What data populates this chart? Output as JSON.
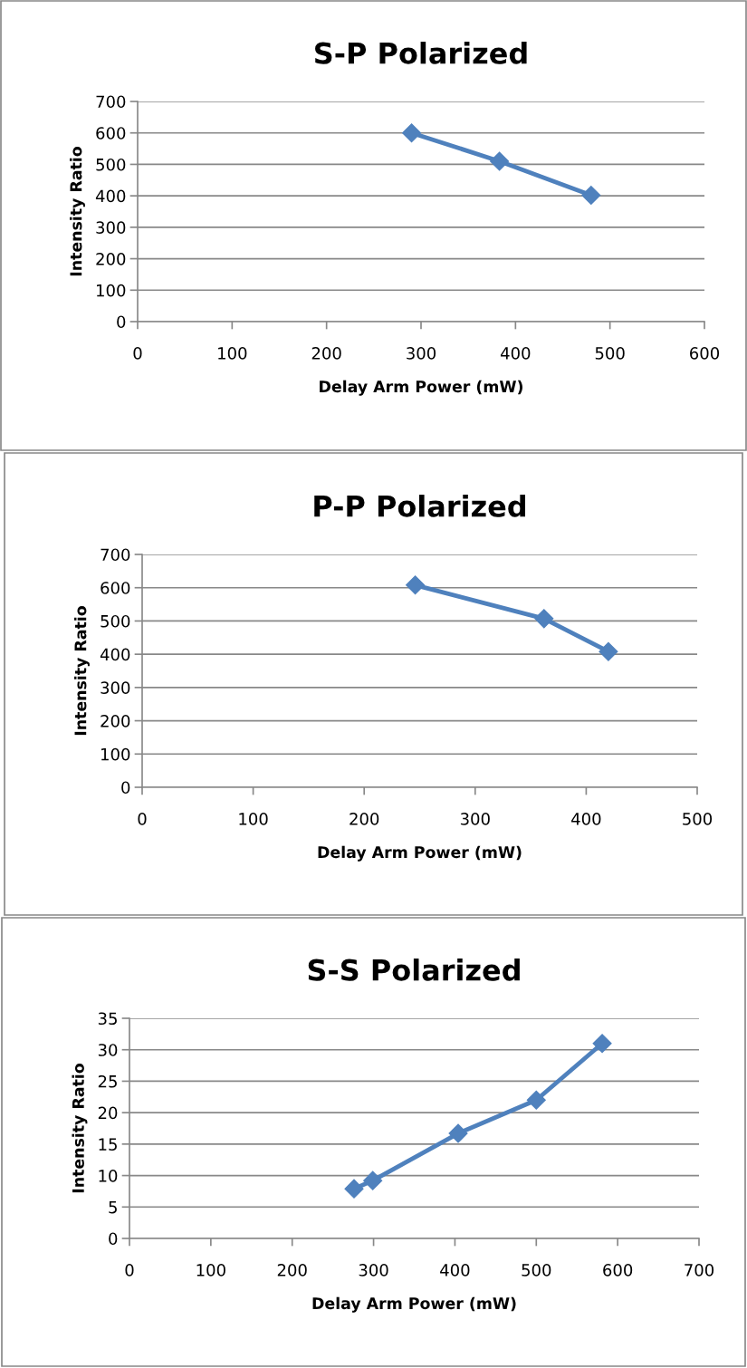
{
  "chart_data": [
    {
      "type": "line",
      "title": "S-P Polarized",
      "xlabel": "Delay Arm Power (mW)",
      "ylabel": "Intensity Ratio",
      "series": [
        {
          "color": "#4f81bd",
          "x": [
            290,
            383,
            480
          ],
          "values": [
            600,
            510,
            402
          ]
        }
      ],
      "xlim": [
        0,
        600
      ],
      "xticks": [
        0,
        100,
        200,
        300,
        400,
        500,
        600
      ],
      "ylim": [
        0,
        700
      ],
      "yticks": [
        0,
        100,
        200,
        300,
        400,
        500,
        600,
        700
      ],
      "grid": "y",
      "marker": "diamond",
      "line_style": "solid"
    },
    {
      "type": "line",
      "title": "P-P Polarized",
      "xlabel": "Delay Arm Power (mW)",
      "ylabel": "Intensity Ratio",
      "series": [
        {
          "color": "#4f81bd",
          "x": [
            246,
            362,
            420
          ],
          "values": [
            608,
            507,
            408
          ]
        }
      ],
      "xlim": [
        0,
        500
      ],
      "xticks": [
        0,
        100,
        200,
        300,
        400,
        500
      ],
      "ylim": [
        0,
        700
      ],
      "yticks": [
        0,
        100,
        200,
        300,
        400,
        500,
        600,
        700
      ],
      "grid": "y",
      "marker": "diamond",
      "line_style": "solid"
    },
    {
      "type": "line",
      "title": "S-S Polarized",
      "xlabel": "Delay Arm Power (mW)",
      "ylabel": "Intensity Ratio",
      "series": [
        {
          "color": "#4f81bd",
          "x": [
            276,
            299,
            404,
            500,
            581
          ],
          "values": [
            7.9,
            9.2,
            16.7,
            22,
            31
          ]
        }
      ],
      "xlim": [
        0,
        700
      ],
      "xticks": [
        0,
        100,
        200,
        300,
        400,
        500,
        600,
        700
      ],
      "ylim": [
        0,
        35
      ],
      "yticks": [
        0,
        5,
        10,
        15,
        20,
        25,
        30,
        35
      ],
      "grid": "y",
      "marker": "diamond",
      "line_style": "solid"
    }
  ]
}
